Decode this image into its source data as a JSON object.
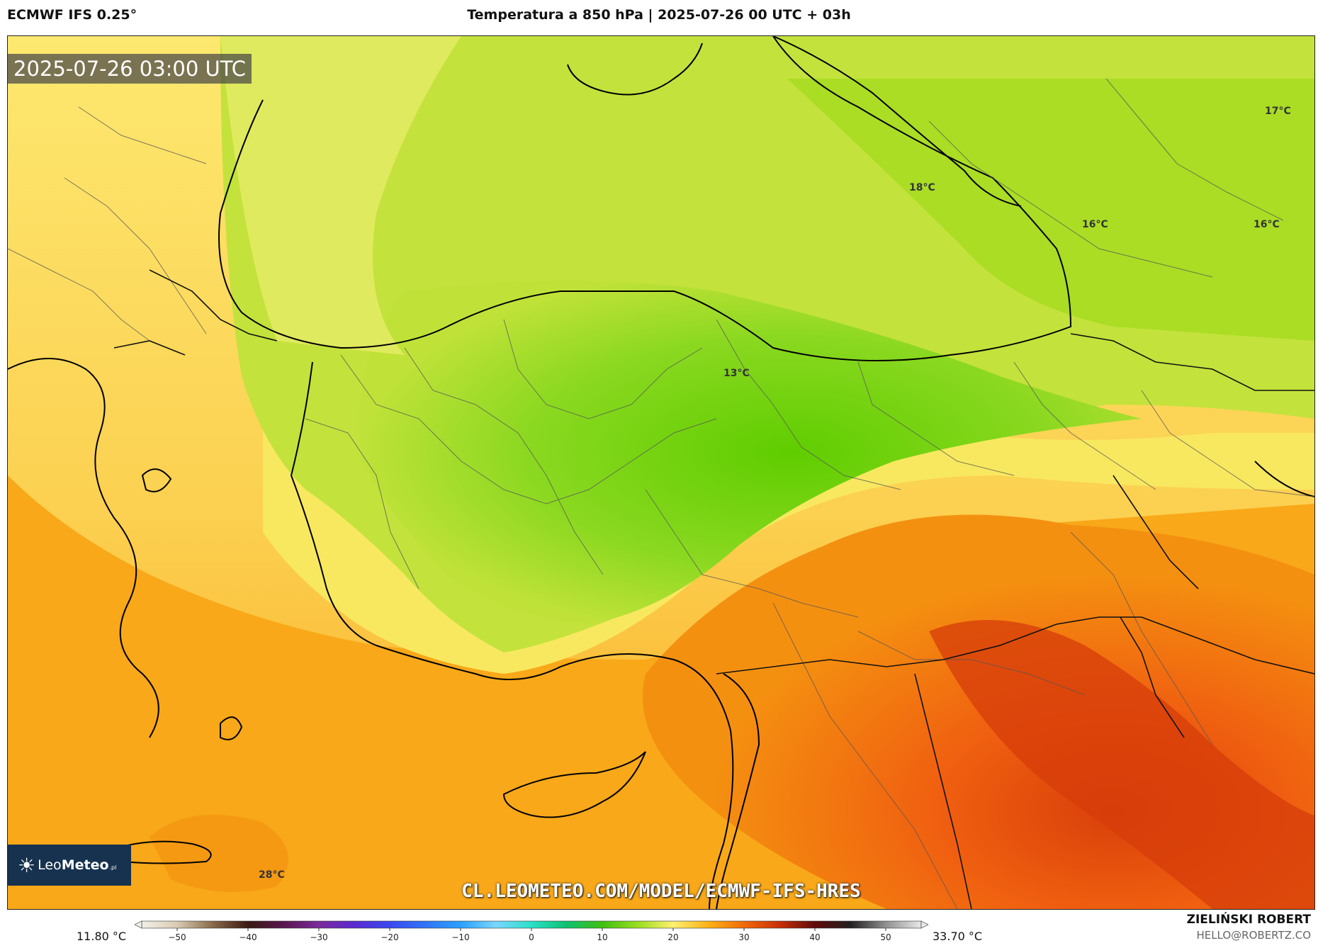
{
  "header": {
    "model": "ECMWF IFS 0.25°",
    "title": "Temperatura a 850 hPa | 2025-07-26 00 UTC + 03h"
  },
  "map": {
    "valid_time": "2025-07-26 03:00 UTC",
    "temp_labels": [
      {
        "text": "17°C",
        "value": 17
      },
      {
        "text": "18°C",
        "value": 18
      },
      {
        "text": "16°C",
        "value": 16
      },
      {
        "text": "16°C",
        "value": 16
      },
      {
        "text": "13°C",
        "value": 13
      },
      {
        "text": "28°C",
        "value": 28
      }
    ],
    "colors": {
      "cold": "#5fcd00",
      "mild": "#b6e02a",
      "neutral": "#fff07a",
      "warm": "#fbb214",
      "hot": "#f26a08",
      "hottest": "#d9400a",
      "land_border": "#000000"
    }
  },
  "logo": {
    "icon": "sun-icon",
    "text_light": "Leo",
    "text_bold": "Meteo",
    "suffix": ".pl"
  },
  "url": "CL.LEOMETEO.COM/MODEL/ECMWF-IFS-HRES",
  "colorbar": {
    "min_label": "11.80 °C",
    "max_label": "33.70 °C",
    "ticks": [
      "−50",
      "−40",
      "−30",
      "−20",
      "−10",
      "0",
      "10",
      "20",
      "30",
      "40",
      "50"
    ],
    "range": [
      -55,
      55
    ],
    "stops": [
      {
        "v": -55,
        "c": "#f2efe8"
      },
      {
        "v": -50,
        "c": "#d9cbb3"
      },
      {
        "v": -45,
        "c": "#8a6a4a"
      },
      {
        "v": -40,
        "c": "#3a1a12"
      },
      {
        "v": -35,
        "c": "#5a1650"
      },
      {
        "v": -30,
        "c": "#7a2a9a"
      },
      {
        "v": -25,
        "c": "#5a2ad0"
      },
      {
        "v": -20,
        "c": "#3a48f0"
      },
      {
        "v": -10,
        "c": "#2aa0ff"
      },
      {
        "v": -5,
        "c": "#7ad6ff"
      },
      {
        "v": 0,
        "c": "#2ae0c8"
      },
      {
        "v": 5,
        "c": "#10c070"
      },
      {
        "v": 10,
        "c": "#40c010"
      },
      {
        "v": 15,
        "c": "#9ade20"
      },
      {
        "v": 20,
        "c": "#fff070"
      },
      {
        "v": 25,
        "c": "#fbb214"
      },
      {
        "v": 30,
        "c": "#f26a08"
      },
      {
        "v": 35,
        "c": "#c83008"
      },
      {
        "v": 40,
        "c": "#600a0a"
      },
      {
        "v": 45,
        "c": "#202020"
      },
      {
        "v": 50,
        "c": "#909090"
      },
      {
        "v": 55,
        "c": "#e8e8e8"
      }
    ]
  },
  "author": {
    "name": "ZIELIŃSKI ROBERT",
    "email": "HELLO@ROBERTZ.CO"
  }
}
